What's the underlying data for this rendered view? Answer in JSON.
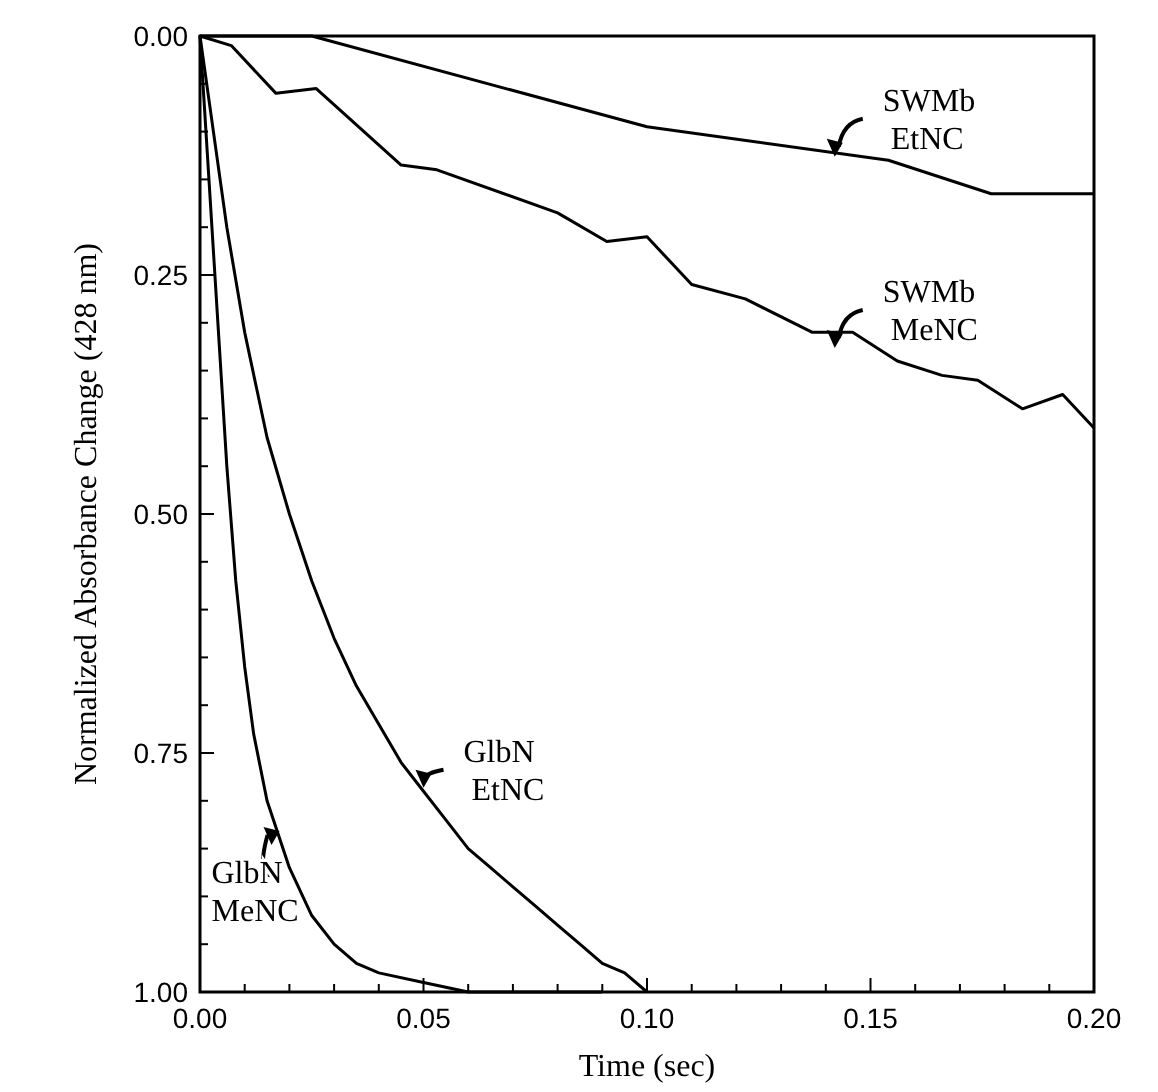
{
  "chart_data": {
    "type": "line",
    "xlabel": "Time (sec)",
    "ylabel": "Normalized Absorbance Change (428 nm)",
    "xlim": [
      0,
      0.2
    ],
    "ylim": [
      1,
      0
    ],
    "xticks": [
      {
        "value": 0,
        "label": "0.00"
      },
      {
        "value": 0.01,
        "label": null
      },
      {
        "value": 0.02,
        "label": null
      },
      {
        "value": 0.03,
        "label": null
      },
      {
        "value": 0.04,
        "label": null
      },
      {
        "value": 0.05,
        "label": "0.05"
      },
      {
        "value": 0.06,
        "label": null
      },
      {
        "value": 0.07,
        "label": null
      },
      {
        "value": 0.08,
        "label": null
      },
      {
        "value": 0.09,
        "label": null
      },
      {
        "value": 0.1,
        "label": "0.10"
      },
      {
        "value": 0.11,
        "label": null
      },
      {
        "value": 0.12,
        "label": null
      },
      {
        "value": 0.13,
        "label": null
      },
      {
        "value": 0.14,
        "label": null
      },
      {
        "value": 0.15,
        "label": "0.15"
      },
      {
        "value": 0.16,
        "label": null
      },
      {
        "value": 0.17,
        "label": null
      },
      {
        "value": 0.18,
        "label": null
      },
      {
        "value": 0.19,
        "label": null
      },
      {
        "value": 0.2,
        "label": "0.20"
      }
    ],
    "yticks": [
      {
        "value": 0,
        "label": "0.00"
      },
      {
        "value": 0.05,
        "label": null
      },
      {
        "value": 0.1,
        "label": null
      },
      {
        "value": 0.15,
        "label": null
      },
      {
        "value": 0.2,
        "label": null
      },
      {
        "value": 0.25,
        "label": "0.25"
      },
      {
        "value": 0.3,
        "label": null
      },
      {
        "value": 0.35,
        "label": null
      },
      {
        "value": 0.4,
        "label": null
      },
      {
        "value": 0.45,
        "label": null
      },
      {
        "value": 0.5,
        "label": "0.50"
      },
      {
        "value": 0.55,
        "label": null
      },
      {
        "value": 0.6,
        "label": null
      },
      {
        "value": 0.65,
        "label": null
      },
      {
        "value": 0.7,
        "label": null
      },
      {
        "value": 0.75,
        "label": "0.75"
      },
      {
        "value": 0.8,
        "label": null
      },
      {
        "value": 0.85,
        "label": null
      },
      {
        "value": 0.9,
        "label": null
      },
      {
        "value": 0.95,
        "label": null
      },
      {
        "value": 1,
        "label": "1.00"
      }
    ],
    "grid": false,
    "marker": "none",
    "line_style": "solid",
    "series": [
      {
        "color": "#000000",
        "x": [
          0,
          0.025,
          0.1,
          0.154,
          0.177,
          0.2
        ],
        "values": [
          0,
          0,
          0.095,
          0.13,
          0.165,
          0.165
        ]
      },
      {
        "color": "#000000",
        "x": [
          0,
          0.007,
          0.017,
          0.026,
          0.045,
          0.053,
          0.08,
          0.091,
          0.1,
          0.11,
          0.122,
          0.137,
          0.146,
          0.156,
          0.166,
          0.174,
          0.184,
          0.193,
          0.2
        ],
        "values": [
          0,
          0.01,
          0.06,
          0.055,
          0.135,
          0.14,
          0.185,
          0.215,
          0.21,
          0.26,
          0.275,
          0.31,
          0.31,
          0.34,
          0.355,
          0.36,
          0.39,
          0.375,
          0.41
        ]
      },
      {
        "color": "#000000",
        "x": [
          0,
          0.003,
          0.006,
          0.01,
          0.015,
          0.02,
          0.025,
          0.03,
          0.035,
          0.04,
          0.045,
          0.05,
          0.055,
          0.06,
          0.065,
          0.07,
          0.075,
          0.08,
          0.085,
          0.09,
          0.095,
          0.1
        ],
        "values": [
          0,
          0.1,
          0.2,
          0.31,
          0.42,
          0.5,
          0.57,
          0.63,
          0.68,
          0.72,
          0.76,
          0.79,
          0.82,
          0.85,
          0.87,
          0.89,
          0.91,
          0.93,
          0.95,
          0.97,
          0.98,
          1
        ]
      },
      {
        "color": "#000000",
        "x": [
          0,
          0.002,
          0.004,
          0.006,
          0.008,
          0.01,
          0.012,
          0.015,
          0.02,
          0.025,
          0.03,
          0.035,
          0.04,
          0.05,
          0.06,
          0.09
        ],
        "values": [
          0,
          0.15,
          0.3,
          0.45,
          0.57,
          0.66,
          0.73,
          0.8,
          0.87,
          0.92,
          0.95,
          0.97,
          0.98,
          0.99,
          1,
          1
        ]
      }
    ],
    "annotations": [
      {
        "text": "SWMb\nEtNC",
        "x": 0.142,
        "y": 0.12
      },
      {
        "text": "SWMb\nMeNC",
        "x": 0.142,
        "y": 0.32
      },
      {
        "text": "GlbN\nEtNC",
        "x": 0.05,
        "y": 0.78
      },
      {
        "text": "GlbN\nMeNC",
        "x": 0.016,
        "y": 0.84
      }
    ]
  }
}
